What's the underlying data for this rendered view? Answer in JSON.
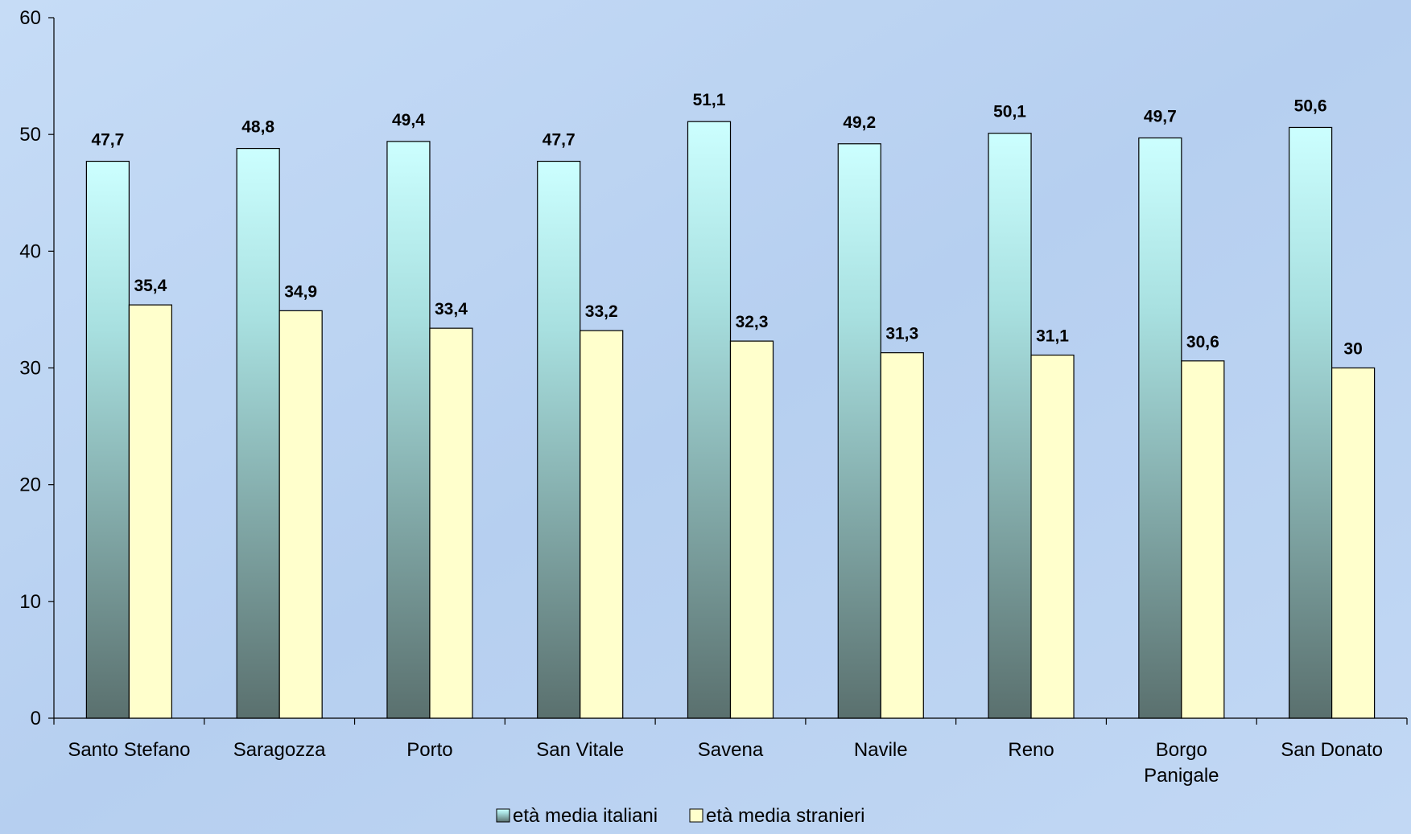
{
  "chart_data": {
    "type": "bar",
    "title": "",
    "xlabel": "",
    "ylabel": "",
    "ylim": [
      0,
      60
    ],
    "yticks": [
      0,
      10,
      20,
      30,
      40,
      50,
      60
    ],
    "grid": false,
    "legend_position": "bottom",
    "categories": [
      [
        "Santo Stefano"
      ],
      [
        "Saragozza"
      ],
      [
        "Porto"
      ],
      [
        "San Vitale"
      ],
      [
        "Savena"
      ],
      [
        "Navile"
      ],
      [
        "Reno"
      ],
      [
        "Borgo",
        "Panigale"
      ],
      [
        "San Donato"
      ]
    ],
    "series": [
      {
        "name": "età media italiani",
        "values": [
          47.7,
          48.8,
          49.4,
          47.7,
          51.1,
          49.2,
          50.1,
          49.7,
          50.6
        ],
        "labels": [
          "47,7",
          "48,8",
          "49,4",
          "47,7",
          "51,1",
          "49,2",
          "50,1",
          "49,7",
          "50,6"
        ],
        "color_top": "#ccffff",
        "color_bottom": "#5a706e"
      },
      {
        "name": "età media stranieri",
        "values": [
          35.4,
          34.9,
          33.4,
          33.2,
          32.3,
          31.3,
          31.1,
          30.6,
          30
        ],
        "labels": [
          "35,4",
          "34,9",
          "33,4",
          "33,2",
          "32,3",
          "31,3",
          "31,1",
          "30,6",
          "30"
        ],
        "color": "#ffffcc"
      }
    ]
  },
  "background_color": "#bcd4f2"
}
